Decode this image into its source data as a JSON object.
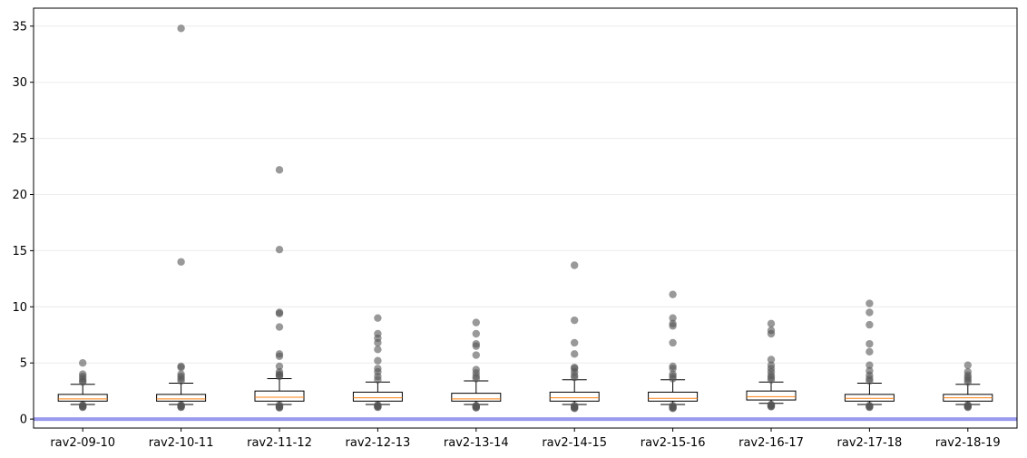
{
  "chart_data": {
    "type": "box",
    "title": "",
    "xlabel": "",
    "ylabel": "",
    "ylim": [
      -0.8,
      36.6
    ],
    "yticks": [
      0,
      5,
      10,
      15,
      20,
      25,
      30,
      35
    ],
    "grid": "horizontal",
    "reference_line": {
      "y": 0,
      "color": "#9999ee"
    },
    "colors": {
      "box": "#000000",
      "median": "#ff7f0e",
      "outlier": "#555555",
      "grid": "#ececec"
    },
    "categories": [
      "rav2-09-10",
      "rav2-10-11",
      "rav2-11-12",
      "rav2-12-13",
      "rav2-13-14",
      "rav2-14-15",
      "rav2-15-16",
      "rav2-16-17",
      "rav2-17-18",
      "rav2-18-19"
    ],
    "boxes": [
      {
        "whislo": 1.3,
        "q1": 1.6,
        "med": 1.8,
        "q3": 2.2,
        "whishi": 3.1,
        "outliers_high": [
          3.3,
          3.4,
          3.6,
          3.8,
          4.0,
          5.0
        ],
        "outliers_low": [
          1.05,
          1.1,
          1.15,
          1.2,
          1.25
        ]
      },
      {
        "whislo": 1.3,
        "q1": 1.6,
        "med": 1.8,
        "q3": 2.2,
        "whishi": 3.2,
        "outliers_high": [
          3.4,
          3.6,
          3.8,
          4.0,
          4.6,
          4.7,
          14.0,
          34.8
        ],
        "outliers_low": [
          1.05,
          1.1,
          1.15,
          1.2,
          1.25
        ]
      },
      {
        "whislo": 1.3,
        "q1": 1.6,
        "med": 1.95,
        "q3": 2.5,
        "whishi": 3.6,
        "outliers_high": [
          3.8,
          3.9,
          4.0,
          4.2,
          4.7,
          5.6,
          5.8,
          8.2,
          9.4,
          9.5,
          15.1,
          22.2
        ],
        "outliers_low": [
          1.0,
          1.05,
          1.1,
          1.15,
          1.25
        ]
      },
      {
        "whislo": 1.3,
        "q1": 1.6,
        "med": 1.9,
        "q3": 2.4,
        "whishi": 3.3,
        "outliers_high": [
          3.5,
          3.8,
          4.2,
          4.5,
          5.2,
          6.2,
          6.8,
          7.2,
          7.6,
          9.0
        ],
        "outliers_low": [
          1.05,
          1.1,
          1.15,
          1.2,
          1.25
        ]
      },
      {
        "whislo": 1.3,
        "q1": 1.6,
        "med": 1.8,
        "q3": 2.3,
        "whishi": 3.4,
        "outliers_high": [
          3.6,
          3.8,
          4.1,
          4.4,
          5.7,
          6.5,
          6.7,
          7.6,
          8.6
        ],
        "outliers_low": [
          1.0,
          1.05,
          1.1,
          1.15,
          1.2
        ]
      },
      {
        "whislo": 1.3,
        "q1": 1.6,
        "med": 1.9,
        "q3": 2.4,
        "whishi": 3.5,
        "outliers_high": [
          3.7,
          3.9,
          4.2,
          4.5,
          4.6,
          5.8,
          6.8,
          8.8,
          13.7
        ],
        "outliers_low": [
          0.95,
          1.0,
          1.05,
          1.1,
          1.2
        ]
      },
      {
        "whislo": 1.3,
        "q1": 1.6,
        "med": 1.85,
        "q3": 2.4,
        "whishi": 3.5,
        "outliers_high": [
          3.6,
          3.8,
          4.0,
          4.5,
          4.7,
          6.8,
          8.3,
          8.5,
          9.0,
          11.1
        ],
        "outliers_low": [
          0.95,
          1.0,
          1.05,
          1.1,
          1.2
        ]
      },
      {
        "whislo": 1.4,
        "q1": 1.7,
        "med": 2.0,
        "q3": 2.5,
        "whishi": 3.3,
        "outliers_high": [
          3.5,
          3.7,
          3.9,
          4.2,
          4.5,
          4.8,
          5.3,
          7.6,
          7.9,
          8.5
        ],
        "outliers_low": [
          1.1,
          1.15,
          1.2,
          1.25,
          1.3
        ]
      },
      {
        "whislo": 1.3,
        "q1": 1.6,
        "med": 1.85,
        "q3": 2.2,
        "whishi": 3.2,
        "outliers_high": [
          3.4,
          3.6,
          3.9,
          4.3,
          4.8,
          6.0,
          6.7,
          8.4,
          9.5,
          10.3
        ],
        "outliers_low": [
          1.05,
          1.1,
          1.15,
          1.2
        ]
      },
      {
        "whislo": 1.3,
        "q1": 1.6,
        "med": 1.9,
        "q3": 2.2,
        "whishi": 3.1,
        "outliers_high": [
          3.3,
          3.5,
          3.7,
          3.9,
          4.2,
          4.8
        ],
        "outliers_low": [
          1.05,
          1.1,
          1.15,
          1.2,
          1.25
        ]
      }
    ]
  }
}
